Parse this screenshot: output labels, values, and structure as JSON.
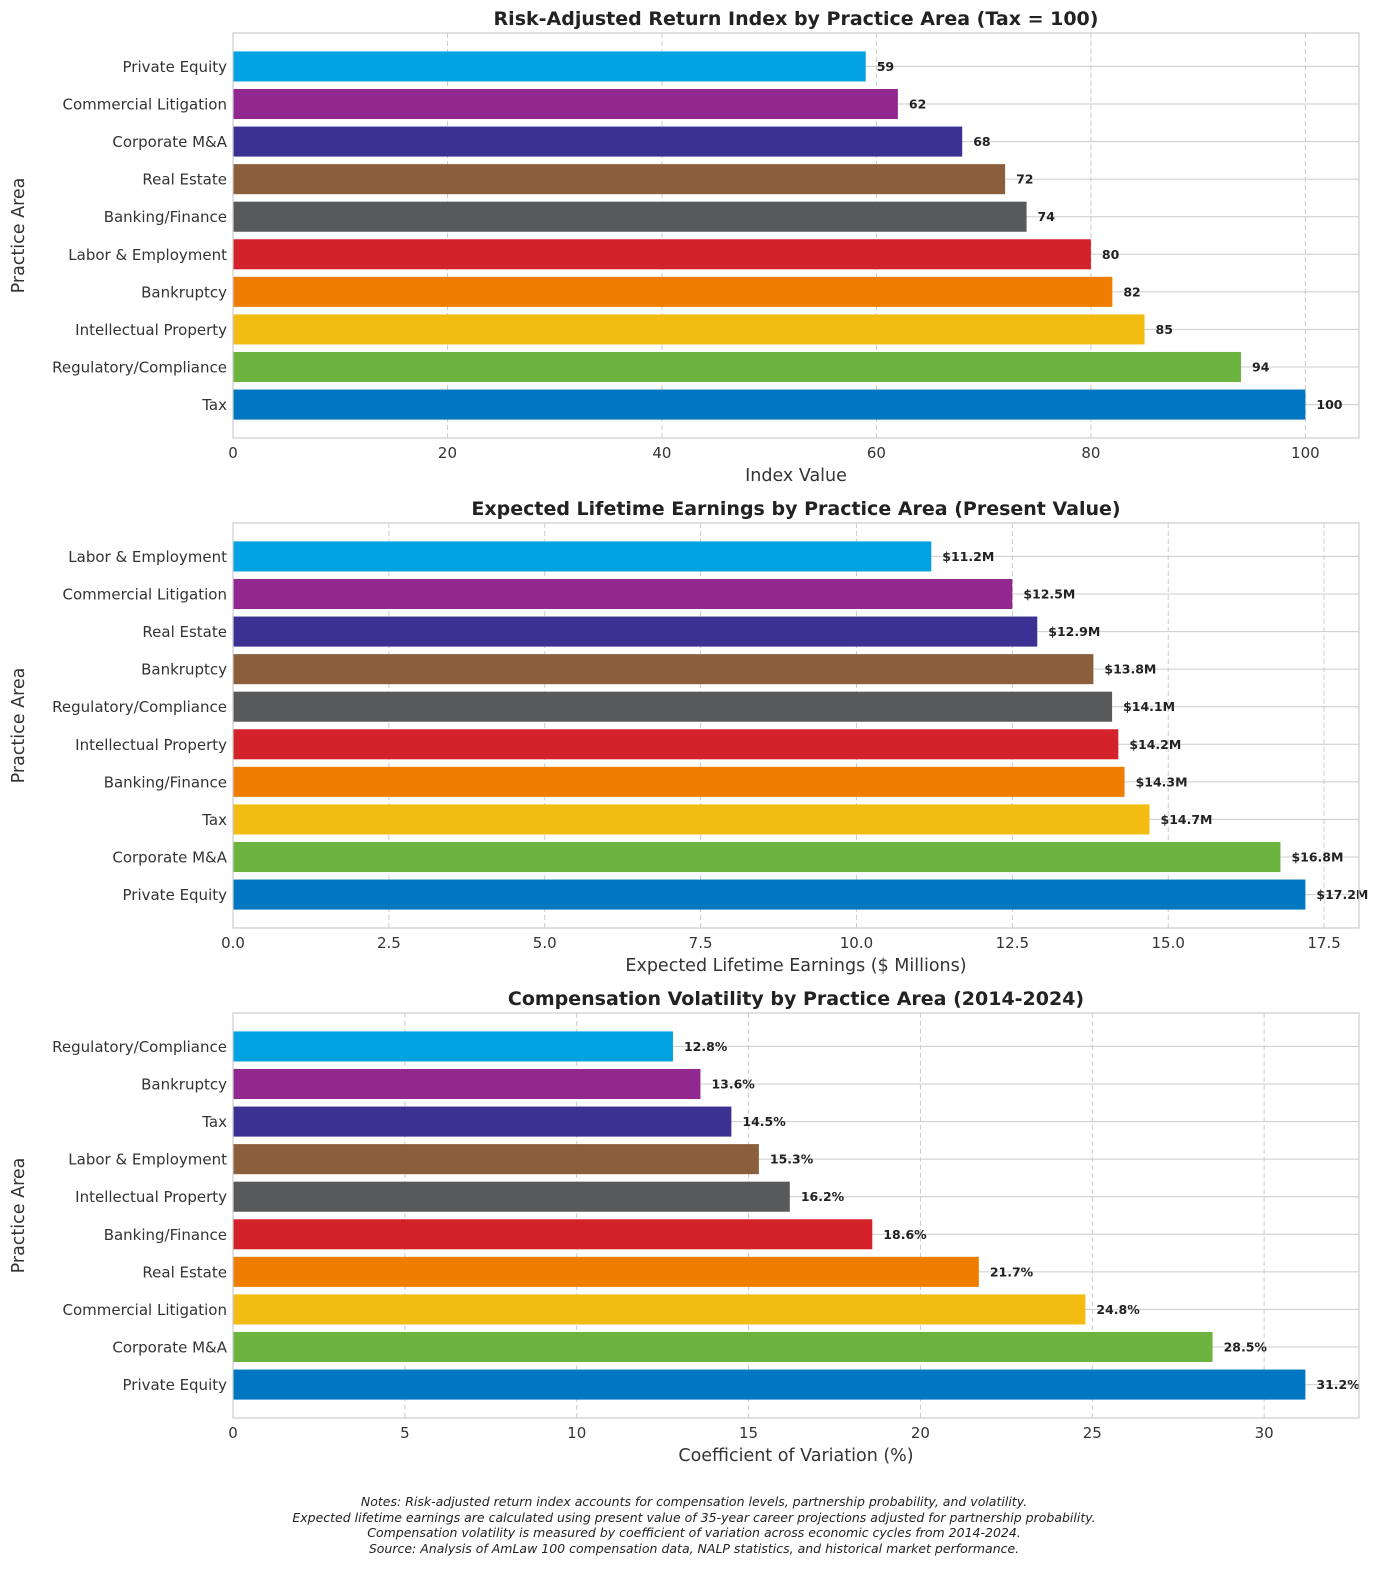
{
  "chart_data": [
    {
      "type": "bar",
      "orientation": "horizontal",
      "title": "Risk-Adjusted Return Index by Practice Area (Tax = 100)",
      "xlabel": "Index Value",
      "ylabel": "Practice Area",
      "categories": [
        "Tax",
        "Regulatory/Compliance",
        "Intellectual Property",
        "Bankruptcy",
        "Labor & Employment",
        "Banking/Finance",
        "Real Estate",
        "Corporate M&A",
        "Commercial Litigation",
        "Private Equity"
      ],
      "values": [
        100,
        94,
        85,
        82,
        80,
        74,
        72,
        68,
        62,
        59
      ],
      "data_labels": [
        "100",
        "94",
        "85",
        "82",
        "80",
        "74",
        "72",
        "68",
        "62",
        "59"
      ],
      "xlim": [
        0,
        105
      ],
      "xticks": [
        0,
        20,
        40,
        60,
        80,
        100
      ],
      "xtick_labels": [
        "0",
        "20",
        "40",
        "60",
        "80",
        "100"
      ],
      "grid": true
    },
    {
      "type": "bar",
      "orientation": "horizontal",
      "title": "Expected Lifetime Earnings by Practice Area (Present Value)",
      "xlabel": "Expected Lifetime Earnings ($ Millions)",
      "ylabel": "Practice Area",
      "categories": [
        "Private Equity",
        "Corporate M&A",
        "Tax",
        "Banking/Finance",
        "Intellectual Property",
        "Regulatory/Compliance",
        "Bankruptcy",
        "Real Estate",
        "Commercial Litigation",
        "Labor & Employment"
      ],
      "values": [
        17.2,
        16.8,
        14.7,
        14.3,
        14.2,
        14.1,
        13.8,
        12.9,
        12.5,
        11.2
      ],
      "data_labels": [
        "$17.2M",
        "$16.8M",
        "$14.7M",
        "$14.3M",
        "$14.2M",
        "$14.1M",
        "$13.8M",
        "$12.9M",
        "$12.5M",
        "$11.2M"
      ],
      "xlim": [
        0,
        18.06
      ],
      "xticks": [
        0,
        2.5,
        5,
        7.5,
        10,
        12.5,
        15,
        17.5
      ],
      "xtick_labels": [
        "0.0",
        "2.5",
        "5.0",
        "7.5",
        "10.0",
        "12.5",
        "15.0",
        "17.5"
      ],
      "grid": true
    },
    {
      "type": "bar",
      "orientation": "horizontal",
      "title": "Compensation Volatility by Practice Area (2014-2024)",
      "xlabel": "Coefficient of Variation (%)",
      "ylabel": "Practice Area",
      "categories": [
        "Private Equity",
        "Corporate M&A",
        "Commercial Litigation",
        "Real Estate",
        "Banking/Finance",
        "Intellectual Property",
        "Labor & Employment",
        "Tax",
        "Bankruptcy",
        "Regulatory/Compliance"
      ],
      "values": [
        31.2,
        28.5,
        24.8,
        21.7,
        18.6,
        16.2,
        15.3,
        14.5,
        13.6,
        12.8
      ],
      "data_labels": [
        "31.2%",
        "28.5%",
        "24.8%",
        "21.7%",
        "18.6%",
        "16.2%",
        "15.3%",
        "14.5%",
        "13.6%",
        "12.8%"
      ],
      "xlim": [
        0,
        32.76
      ],
      "xticks": [
        0,
        5,
        10,
        15,
        20,
        25,
        30
      ],
      "xtick_labels": [
        "0",
        "5",
        "10",
        "15",
        "20",
        "25",
        "30"
      ],
      "grid": true
    }
  ],
  "bar_colors": [
    "#0077C0",
    "#6DB33F",
    "#F2BC12",
    "#EF7D00",
    "#D3222A",
    "#58595B",
    "#8B5E3C",
    "#3A3192",
    "#92278F",
    "#00A2E0"
  ],
  "notes": [
    "Notes: Risk-adjusted return index accounts for compensation levels, partnership probability, and volatility.",
    "Expected lifetime earnings are calculated using present value of 35-year career projections adjusted for partnership probability.",
    "Compensation volatility is measured by coefficient of variation across economic cycles from 2014-2024.",
    "Source: Analysis of AmLaw 100 compensation data, NALP statistics, and historical market performance."
  ]
}
